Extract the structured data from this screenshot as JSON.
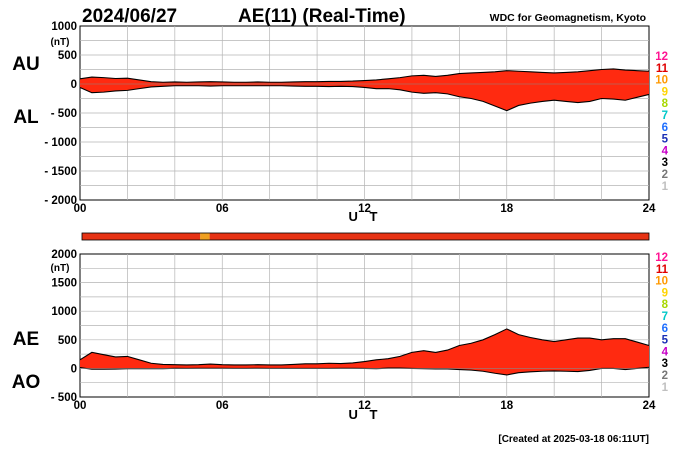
{
  "header": {
    "date": "2024/06/27",
    "index_title": "AE(11) (Real-Time)",
    "source": "WDC for Geomagnetism, Kyoto",
    "created": "[Created at 2025-03-18 06:11UT]"
  },
  "colors": {
    "fill": "#ff2a10",
    "outline": "#000000",
    "grid": "#b4b4b4",
    "bar": "#e63214",
    "bar_marker": "#f0a020"
  },
  "legend_numbers": [
    {
      "label": "12",
      "color": "#ff1493"
    },
    {
      "label": "11",
      "color": "#e00000"
    },
    {
      "label": "10",
      "color": "#ff9900"
    },
    {
      "label": "9",
      "color": "#ffd400"
    },
    {
      "label": "8",
      "color": "#a8d800"
    },
    {
      "label": "7",
      "color": "#00c8c8"
    },
    {
      "label": "6",
      "color": "#1e6eff"
    },
    {
      "label": "5",
      "color": "#1a2fb5"
    },
    {
      "label": "4",
      "color": "#c800c8"
    },
    {
      "label": "3",
      "color": "#000000"
    },
    {
      "label": "2",
      "color": "#777777"
    },
    {
      "label": "1",
      "color": "#c0c0c0"
    }
  ],
  "station_bar": {
    "segments": [
      {
        "start_hour": 0,
        "end_hour": 5.0,
        "stations": 11
      },
      {
        "start_hour": 5.0,
        "end_hour": 5.4,
        "stations": 10
      },
      {
        "start_hour": 5.4,
        "end_hour": 24,
        "stations": 11
      }
    ]
  },
  "chart_data": [
    {
      "type": "area",
      "name": "AU/AL",
      "left_labels": [
        "AU",
        "AL"
      ],
      "ylabel": "(nT)",
      "xlabel": "U T",
      "ylim": [
        -2000,
        1000
      ],
      "yticks": [
        1000,
        500,
        0,
        -500,
        -1000,
        -1500,
        -2000
      ],
      "ytick_labels": [
        "1000",
        "500",
        "0",
        "- 500",
        "- 1000",
        "- 1500",
        "- 2000"
      ],
      "xticks": [
        0,
        6,
        12,
        18,
        24
      ],
      "xtick_labels": [
        "00",
        "06",
        "12",
        "18",
        "24"
      ],
      "grid": true,
      "x_hours": [
        0,
        0.5,
        1,
        1.5,
        2,
        2.5,
        3,
        3.5,
        4,
        4.5,
        5,
        5.5,
        6,
        6.5,
        7,
        7.5,
        8,
        8.5,
        9,
        9.5,
        10,
        10.5,
        11,
        11.5,
        12,
        12.5,
        13,
        13.5,
        14,
        14.5,
        15,
        15.5,
        16,
        16.5,
        17,
        17.5,
        18,
        18.5,
        19,
        19.5,
        20,
        20.5,
        21,
        21.5,
        22,
        22.5,
        23,
        23.5,
        24
      ],
      "upper": {
        "name": "AU",
        "values": [
          90,
          120,
          110,
          95,
          100,
          70,
          40,
          30,
          35,
          30,
          35,
          40,
          35,
          30,
          30,
          35,
          30,
          30,
          35,
          40,
          40,
          45,
          45,
          50,
          60,
          70,
          90,
          110,
          140,
          150,
          130,
          150,
          180,
          190,
          200,
          210,
          230,
          220,
          210,
          200,
          190,
          200,
          210,
          230,
          250,
          260,
          240,
          230,
          220
        ]
      },
      "lower": {
        "name": "AL",
        "values": [
          -60,
          -150,
          -140,
          -120,
          -110,
          -80,
          -50,
          -40,
          -30,
          -30,
          -30,
          -35,
          -30,
          -30,
          -30,
          -30,
          -30,
          -30,
          -35,
          -40,
          -40,
          -45,
          -40,
          -45,
          -60,
          -80,
          -80,
          -100,
          -140,
          -160,
          -150,
          -170,
          -220,
          -250,
          -300,
          -380,
          -460,
          -370,
          -330,
          -300,
          -280,
          -300,
          -320,
          -300,
          -250,
          -260,
          -280,
          -230,
          -180
        ]
      }
    },
    {
      "type": "area",
      "name": "AE/AO",
      "left_labels": [
        "AE",
        "AO"
      ],
      "ylabel": "(nT)",
      "xlabel": "U T",
      "ylim": [
        -500,
        2000
      ],
      "yticks": [
        2000,
        1500,
        1000,
        500,
        0,
        -500
      ],
      "ytick_labels": [
        "2000",
        "1500",
        "1000",
        "500",
        "0",
        "- 500"
      ],
      "xticks": [
        0,
        6,
        12,
        18,
        24
      ],
      "xtick_labels": [
        "00",
        "06",
        "12",
        "18",
        "24"
      ],
      "grid": true,
      "x_hours": [
        0,
        0.5,
        1,
        1.5,
        2,
        2.5,
        3,
        3.5,
        4,
        4.5,
        5,
        5.5,
        6,
        6.5,
        7,
        7.5,
        8,
        8.5,
        9,
        9.5,
        10,
        10.5,
        11,
        11.5,
        12,
        12.5,
        13,
        13.5,
        14,
        14.5,
        15,
        15.5,
        16,
        16.5,
        17,
        17.5,
        18,
        18.5,
        19,
        19.5,
        20,
        20.5,
        21,
        21.5,
        22,
        22.5,
        23,
        23.5,
        24
      ],
      "upper": {
        "name": "AE",
        "values": [
          150,
          280,
          240,
          200,
          210,
          150,
          90,
          70,
          65,
          60,
          65,
          75,
          65,
          60,
          60,
          65,
          60,
          60,
          70,
          80,
          80,
          90,
          85,
          95,
          120,
          150,
          170,
          210,
          280,
          310,
          280,
          320,
          400,
          440,
          500,
          590,
          690,
          590,
          540,
          500,
          470,
          500,
          530,
          530,
          500,
          520,
          520,
          460,
          400
        ]
      },
      "lower": {
        "name": "AO",
        "values": [
          15,
          -15,
          -15,
          -12,
          -5,
          -5,
          -5,
          -5,
          2,
          0,
          2,
          2,
          2,
          0,
          0,
          2,
          0,
          0,
          0,
          0,
          0,
          0,
          2,
          2,
          0,
          -5,
          5,
          5,
          0,
          -5,
          -10,
          -10,
          -20,
          -30,
          -50,
          -85,
          -115,
          -75,
          -60,
          -50,
          -45,
          -50,
          -55,
          -35,
          0,
          0,
          -20,
          0,
          20
        ]
      }
    }
  ]
}
